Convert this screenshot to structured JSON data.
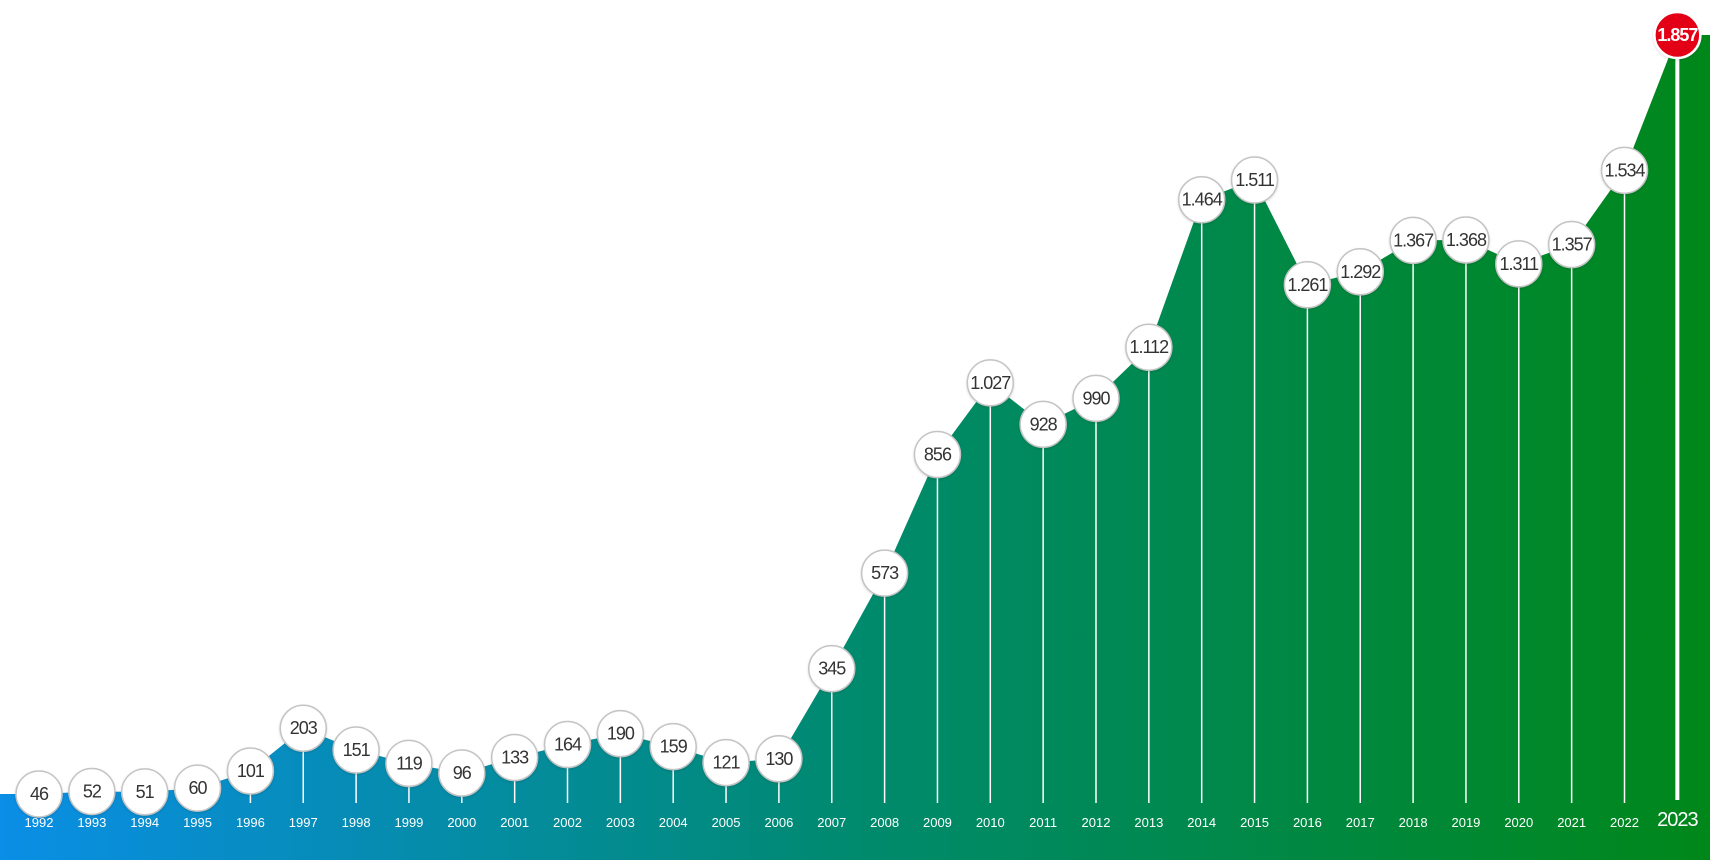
{
  "chart_data": {
    "type": "area",
    "title": "",
    "xlabel": "",
    "ylabel": "",
    "ylim": [
      0,
      1900
    ],
    "grid": false,
    "legend": "none",
    "x": [
      "1992",
      "1993",
      "1994",
      "1995",
      "1996",
      "1997",
      "1998",
      "1999",
      "2000",
      "2001",
      "2002",
      "2003",
      "2004",
      "2005",
      "2006",
      "2007",
      "2008",
      "2009",
      "2010",
      "2011",
      "2012",
      "2013",
      "2014",
      "2015",
      "2016",
      "2017",
      "2018",
      "2019",
      "2020",
      "2021",
      "2022",
      "2023"
    ],
    "values": [
      46,
      52,
      51,
      60,
      101,
      203,
      151,
      119,
      96,
      133,
      164,
      190,
      159,
      121,
      130,
      345,
      573,
      856,
      1027,
      928,
      990,
      1112,
      1464,
      1511,
      1261,
      1292,
      1367,
      1368,
      1311,
      1357,
      1534,
      1857
    ],
    "value_labels": [
      "46",
      "52",
      "51",
      "60",
      "101",
      "203",
      "151",
      "119",
      "96",
      "133",
      "164",
      "190",
      "159",
      "121",
      "130",
      "345",
      "573",
      "856",
      "1.027",
      "928",
      "990",
      "1.112",
      "1.464",
      "1.511",
      "1.261",
      "1.292",
      "1.367",
      "1.368",
      "1.311",
      "1.357",
      "1.534",
      "1.857"
    ],
    "highlight_index": 31,
    "colors": {
      "gradient_start": "#0a8ee6",
      "gradient_mid": "#008a6e",
      "gradient_end": "#00871a",
      "highlight": "#e30613",
      "bubble_fill": "#ffffff",
      "bubble_stroke": "#c4c4c4",
      "stem": "#ffffff"
    }
  }
}
